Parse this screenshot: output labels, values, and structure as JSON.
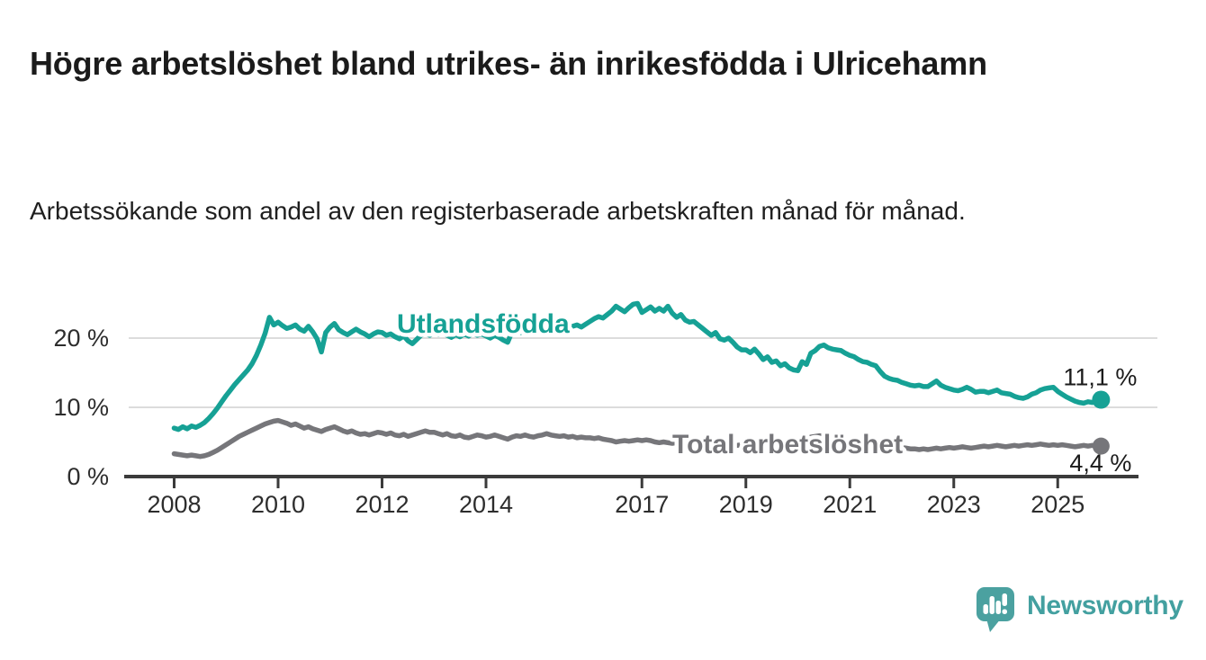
{
  "header": {
    "title": "Högre arbetslöshet bland utrikes- än inrikesfödda i Ulricehamn",
    "subtitle": "Arbetssökande som andel av den registerbaserade arbetskraften månad för månad."
  },
  "chart_data": {
    "type": "line",
    "title": "Högre arbetslöshet bland utrikes- än inrikesfödda i Ulricehamn",
    "x_start": "2008-01",
    "x_end": "2025-11",
    "x_resolution": "monthly",
    "x_tick_years": [
      2008,
      2010,
      2012,
      2014,
      2017,
      2019,
      2021,
      2023,
      2025
    ],
    "y_ticks": [
      {
        "value": 0,
        "label": "0 %"
      },
      {
        "value": 10,
        "label": "10 %"
      },
      {
        "value": 20,
        "label": "20 %"
      }
    ],
    "ylim": [
      0,
      27
    ],
    "grid": "horizontal",
    "colors": {
      "grid": "#dcdcdc",
      "axis": "#3b3b3b",
      "tick_text": "#2d2d2d",
      "value_label_text": "#1b1b1b"
    },
    "series": [
      {
        "name": "Utlandsfödda",
        "color": "#16a195",
        "end_label": "11,1 %",
        "end_value": 11.1,
        "values": [
          7.0,
          6.8,
          7.2,
          6.9,
          7.3,
          7.1,
          7.4,
          7.8,
          8.4,
          9.1,
          9.9,
          10.8,
          11.7,
          12.5,
          13.3,
          14.0,
          14.7,
          15.4,
          16.3,
          17.5,
          19.0,
          20.7,
          23.0,
          21.9,
          22.3,
          21.8,
          21.4,
          21.6,
          21.9,
          21.3,
          21.0,
          21.7,
          20.9,
          19.9,
          18.0,
          20.8,
          21.6,
          22.1,
          21.2,
          20.8,
          20.5,
          20.9,
          21.3,
          20.9,
          20.6,
          20.2,
          20.6,
          20.9,
          20.8,
          20.4,
          20.6,
          20.2,
          19.9,
          20.3,
          19.6,
          19.2,
          19.8,
          20.4,
          20.7,
          20.4,
          20.9,
          20.5,
          20.8,
          20.4,
          20.1,
          20.5,
          20.2,
          20.6,
          20.3,
          20.7,
          20.4,
          20.6,
          20.3,
          20.0,
          20.4,
          20.1,
          19.7,
          19.4,
          20.9,
          21.1,
          20.8,
          21.2,
          21.0,
          21.3,
          21.3,
          21.1,
          21.4,
          21.2,
          21.5,
          21.3,
          21.6,
          21.4,
          21.7,
          21.9,
          21.6,
          22.0,
          22.4,
          22.8,
          23.1,
          22.9,
          23.4,
          23.9,
          24.6,
          24.2,
          23.8,
          24.4,
          24.9,
          25.0,
          23.7,
          24.1,
          24.5,
          23.9,
          24.3,
          23.9,
          24.6,
          23.6,
          23.0,
          23.4,
          22.6,
          22.3,
          22.4,
          21.9,
          21.4,
          20.9,
          20.4,
          20.8,
          19.9,
          19.7,
          20.0,
          19.4,
          18.7,
          18.3,
          18.3,
          17.9,
          18.4,
          17.7,
          16.9,
          17.3,
          16.5,
          16.7,
          16.0,
          16.3,
          15.7,
          15.4,
          15.3,
          16.6,
          16.2,
          17.8,
          18.2,
          18.8,
          19.0,
          18.6,
          18.4,
          18.3,
          18.2,
          17.8,
          17.5,
          17.3,
          16.9,
          16.6,
          16.5,
          16.2,
          16.0,
          15.2,
          14.5,
          14.2,
          14.0,
          13.9,
          13.6,
          13.4,
          13.2,
          13.1,
          13.2,
          13.0,
          13.0,
          13.4,
          13.8,
          13.2,
          12.9,
          12.7,
          12.5,
          12.4,
          12.6,
          12.9,
          12.6,
          12.2,
          12.3,
          12.3,
          12.1,
          12.3,
          12.5,
          12.1,
          12.0,
          11.9,
          11.6,
          11.4,
          11.3,
          11.5,
          11.9,
          12.1,
          12.5,
          12.7,
          12.8,
          12.9,
          12.3,
          11.9,
          11.5,
          11.2,
          10.9,
          10.7,
          10.6,
          10.8,
          10.7,
          10.9,
          11.1
        ]
      },
      {
        "name": "Total arbetslöshet",
        "color": "#76767a",
        "end_label": "4,4 %",
        "end_value": 4.4,
        "values": [
          3.3,
          3.2,
          3.1,
          3.0,
          3.1,
          3.0,
          2.9,
          3.0,
          3.2,
          3.5,
          3.8,
          4.2,
          4.6,
          5.0,
          5.4,
          5.8,
          6.1,
          6.4,
          6.7,
          7.0,
          7.3,
          7.6,
          7.8,
          8.0,
          8.1,
          7.9,
          7.7,
          7.4,
          7.6,
          7.3,
          7.0,
          7.2,
          6.9,
          6.7,
          6.5,
          6.8,
          7.0,
          7.2,
          6.9,
          6.6,
          6.4,
          6.6,
          6.3,
          6.1,
          6.2,
          6.0,
          6.2,
          6.4,
          6.3,
          6.1,
          6.3,
          6.0,
          5.9,
          6.1,
          5.8,
          6.0,
          6.2,
          6.4,
          6.6,
          6.4,
          6.4,
          6.2,
          6.0,
          6.2,
          5.9,
          5.8,
          6.0,
          5.7,
          5.6,
          5.8,
          6.0,
          5.9,
          5.7,
          5.8,
          6.0,
          5.8,
          5.6,
          5.4,
          5.7,
          5.9,
          5.8,
          6.0,
          5.8,
          5.7,
          5.9,
          6.0,
          6.2,
          6.0,
          5.9,
          5.8,
          5.9,
          5.7,
          5.8,
          5.6,
          5.7,
          5.6,
          5.6,
          5.5,
          5.6,
          5.4,
          5.3,
          5.2,
          5.0,
          5.1,
          5.2,
          5.1,
          5.2,
          5.3,
          5.2,
          5.3,
          5.2,
          5.0,
          4.9,
          5.0,
          4.9,
          4.8,
          4.9,
          4.8,
          4.7,
          4.8,
          4.7,
          4.8,
          4.7,
          4.6,
          4.5,
          4.6,
          4.5,
          4.4,
          4.5,
          4.4,
          4.5,
          4.6,
          4.6,
          4.5,
          4.6,
          4.5,
          4.6,
          4.7,
          4.6,
          4.7,
          4.8,
          4.7,
          4.8,
          4.9,
          5.0,
          5.1,
          5.4,
          5.7,
          5.8,
          5.9,
          5.8,
          5.7,
          5.6,
          5.5,
          5.4,
          5.3,
          5.2,
          5.1,
          5.0,
          4.9,
          4.8,
          4.7,
          4.6,
          4.5,
          4.4,
          4.3,
          4.3,
          4.2,
          4.2,
          4.1,
          4.0,
          4.0,
          3.9,
          4.0,
          3.9,
          4.0,
          4.1,
          4.0,
          4.1,
          4.2,
          4.1,
          4.2,
          4.3,
          4.2,
          4.1,
          4.2,
          4.3,
          4.4,
          4.3,
          4.4,
          4.5,
          4.4,
          4.3,
          4.4,
          4.5,
          4.4,
          4.5,
          4.6,
          4.5,
          4.6,
          4.7,
          4.6,
          4.5,
          4.6,
          4.5,
          4.6,
          4.5,
          4.4,
          4.3,
          4.4,
          4.5,
          4.4,
          4.5,
          4.4,
          4.4
        ]
      }
    ],
    "legend_position": "inline-labels"
  },
  "branding": {
    "logo_text": "Newsworthy",
    "logo_color": "#43a0a0",
    "logo_icon": "bar-chart-speech-bubble-icon"
  }
}
